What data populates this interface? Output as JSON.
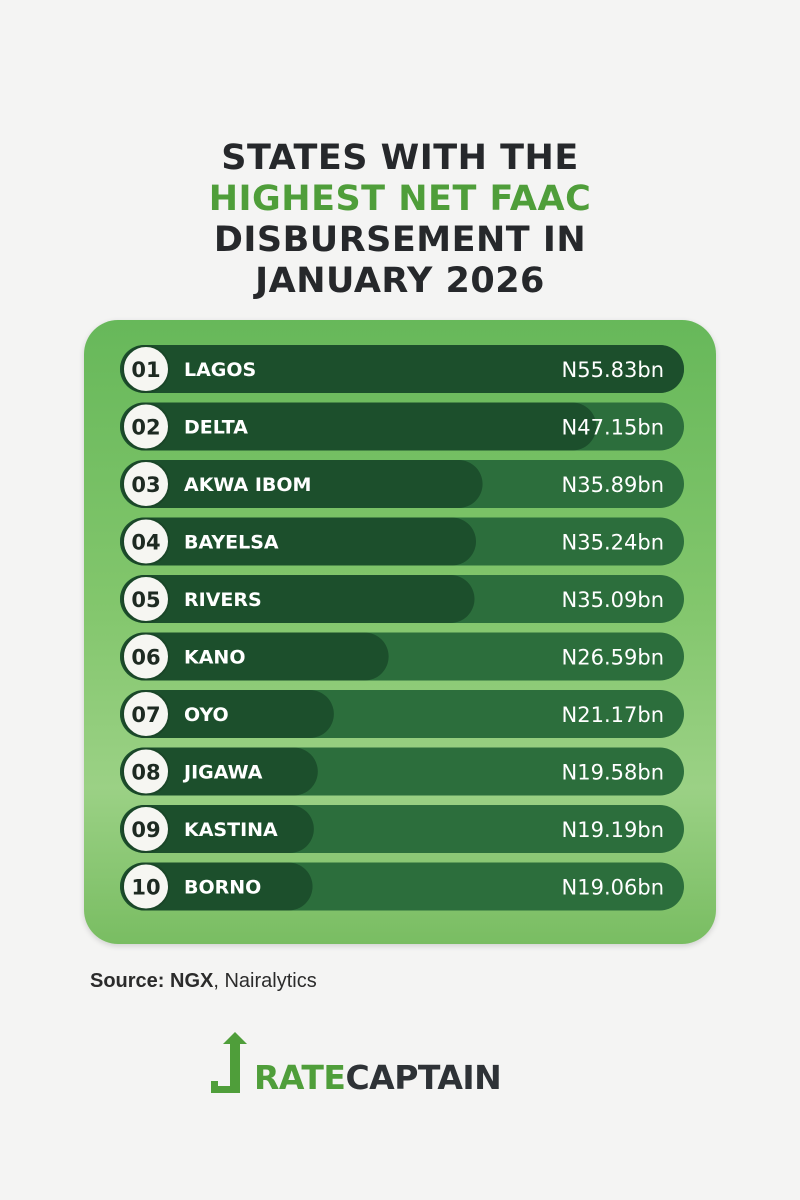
{
  "header": {
    "title_line1": "STATES WITH THE",
    "title_line2": "HIGHEST NET FAAC",
    "title_line3": "DISBURSEMENT IN",
    "title_line4": "JANUARY 2026"
  },
  "chart_data": {
    "type": "bar",
    "title": "STATES WITH THE HIGHEST NET FAAC DISBURSEMENT IN JANUARY 2026",
    "ranks": [
      "01",
      "02",
      "03",
      "04",
      "05",
      "06",
      "07",
      "08",
      "09",
      "10"
    ],
    "categories": [
      "LAGOS",
      "DELTA",
      "AKWA IBOM",
      "BAYELSA",
      "RIVERS",
      "KANO",
      "OYO",
      "JIGAWA",
      "KASTINA",
      "BORNO"
    ],
    "labels": [
      "N55.83bn",
      "N47.15bn",
      "N35.89bn",
      "N35.24bn",
      "N35.09bn",
      "N26.59bn",
      "N21.17bn",
      "N19.58bn",
      "N19.19bn",
      "N19.06bn"
    ],
    "values": [
      55.83,
      47.15,
      35.89,
      35.24,
      35.09,
      26.59,
      21.17,
      19.58,
      19.19,
      19.06
    ],
    "unit": "bn",
    "colors": {
      "bar": "#1c4f2c",
      "track": "#2c6e3c",
      "rank_badge": "#f6f6f2",
      "text": "#ffffff"
    }
  },
  "footer": {
    "source_label": "Source: NGX",
    "source_rest": ", Nairalytics",
    "logo_rate": "RATE",
    "logo_captain": "CAPTAIN",
    "logo_icon": "arrow-up-icon"
  }
}
